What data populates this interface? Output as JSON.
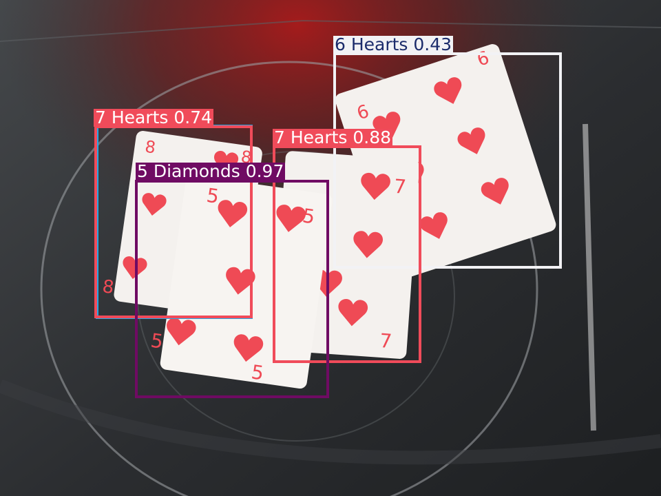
{
  "detections": [
    {
      "label": "6 Hearts 0.43",
      "color": "#F2F2F5",
      "text_color": "#1B2B6B"
    },
    {
      "label": "7 Hearts 0.74",
      "color": "#F04B5A",
      "text_color": "#FFFFFF"
    },
    {
      "label": "7 Hearts 0.88",
      "color": "#F04B5A",
      "text_color": "#FFFFFF"
    },
    {
      "label": "5 Diamonds 0.97",
      "color": "#6F0B63",
      "text_color": "#FFFFFF"
    },
    {
      "label": "",
      "color": "#23A9E8",
      "text_color": "#FFFFFF"
    }
  ],
  "cards": [
    {
      "rank": "6",
      "suit": "hearts"
    },
    {
      "rank": "8",
      "suit": "hearts"
    },
    {
      "rank": "7",
      "suit": "hearts"
    },
    {
      "rank": "5",
      "suit": "hearts"
    }
  ]
}
